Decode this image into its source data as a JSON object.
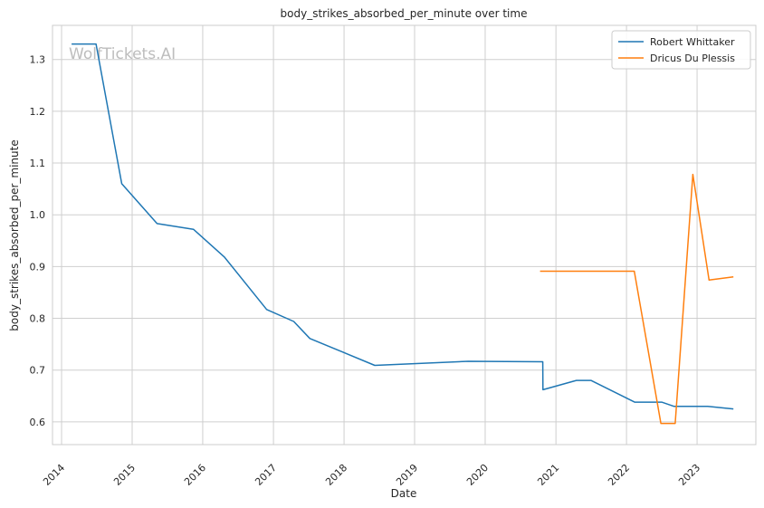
{
  "chart_data": {
    "type": "line",
    "title": "body_strikes_absorbed_per_minute over time",
    "xlabel": "Date",
    "ylabel": "body_strikes_absorbed_per_minute",
    "watermark": "WolfTickets.AI",
    "x_ticks": [
      "2014",
      "2015",
      "2016",
      "2017",
      "2018",
      "2019",
      "2020",
      "2021",
      "2022",
      "2023"
    ],
    "y_ticks": [
      "0.6",
      "0.7",
      "0.8",
      "0.9",
      "1.0",
      "1.1",
      "1.2",
      "1.3"
    ],
    "xlim": [
      "2013-11-15",
      "2023-11-01"
    ],
    "ylim": [
      0.556,
      1.366
    ],
    "grid": true,
    "legend_position": "top-right",
    "series": [
      {
        "name": "Robert Whittaker",
        "color": "#1f77b4",
        "points": [
          [
            "2014-02-22",
            1.33
          ],
          [
            "2014-06-28",
            1.33
          ],
          [
            "2014-11-08",
            1.06
          ],
          [
            "2015-05-10",
            0.983
          ],
          [
            "2015-11-14",
            0.972
          ],
          [
            "2016-04-23",
            0.918
          ],
          [
            "2016-11-27",
            0.817
          ],
          [
            "2017-04-16",
            0.794
          ],
          [
            "2017-07-08",
            0.761
          ],
          [
            "2018-06-09",
            0.709
          ],
          [
            "2019-10-06",
            0.717
          ],
          [
            "2020-10-25",
            0.716
          ],
          [
            "2020-10-26",
            0.662
          ],
          [
            "2021-04-17",
            0.68
          ],
          [
            "2021-07-01",
            0.68
          ],
          [
            "2022-02-12",
            0.638
          ],
          [
            "2022-07-02",
            0.638
          ],
          [
            "2022-09-03",
            0.63
          ],
          [
            "2023-02-25",
            0.63
          ],
          [
            "2023-07-08",
            0.625
          ]
        ]
      },
      {
        "name": "Dricus Du Plessis",
        "color": "#ff7f0e",
        "points": [
          [
            "2020-10-11",
            0.891
          ],
          [
            "2022-02-10",
            0.891
          ],
          [
            "2022-06-28",
            0.597
          ],
          [
            "2022-09-10",
            0.597
          ],
          [
            "2022-12-10",
            1.078
          ],
          [
            "2023-03-04",
            0.874
          ],
          [
            "2023-07-08",
            0.88
          ]
        ]
      }
    ]
  }
}
